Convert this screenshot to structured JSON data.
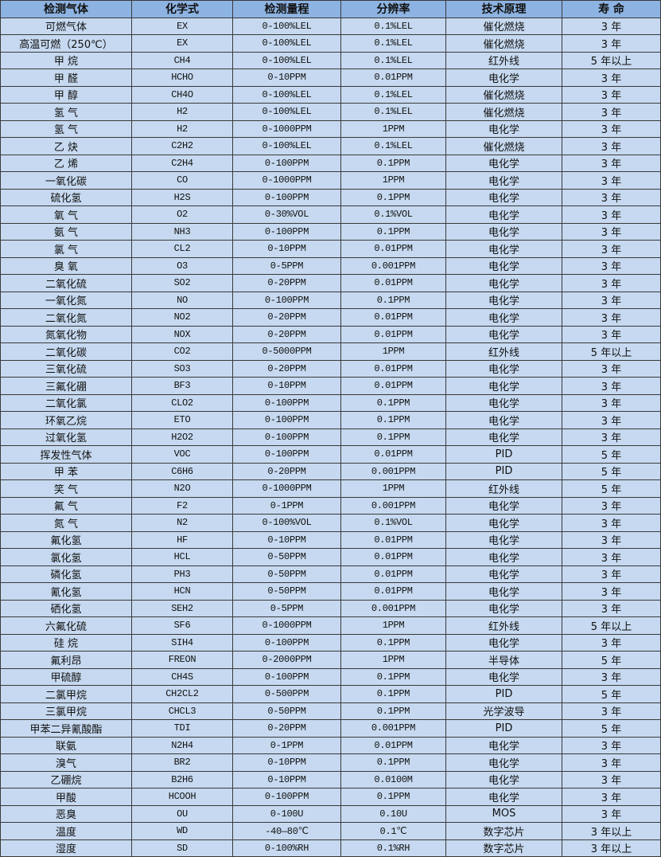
{
  "colors": {
    "header_bg": "#8db3e2",
    "row_bg": "#c6d9f0",
    "border": "#3a3a3a"
  },
  "headers": [
    "检测气体",
    "化学式",
    "检测量程",
    "分辨率",
    "技术原理",
    "寿 命"
  ],
  "rows": [
    [
      "可燃气体",
      "EX",
      "0-100%LEL",
      "0.1%LEL",
      "催化燃烧",
      "3 年"
    ],
    [
      "高温可燃（250℃）",
      "EX",
      "0-100%LEL",
      "0.1%LEL",
      "催化燃烧",
      "3 年"
    ],
    [
      "甲 烷",
      "CH4",
      "0-100%LEL",
      "0.1%LEL",
      "红外线",
      "5 年以上"
    ],
    [
      "甲 醛",
      "HCHO",
      "0-10PPM",
      "0.01PPM",
      "电化学",
      "3 年"
    ],
    [
      "甲 醇",
      "CH4O",
      "0-100%LEL",
      "0.1%LEL",
      "催化燃烧",
      "3 年"
    ],
    [
      "氢 气",
      "H2",
      "0-100%LEL",
      "0.1%LEL",
      "催化燃烧",
      "3 年"
    ],
    [
      "氢 气",
      "H2",
      "0-1000PPM",
      "1PPM",
      "电化学",
      "3 年"
    ],
    [
      "乙 炔",
      "C2H2",
      "0-100%LEL",
      "0.1%LEL",
      "催化燃烧",
      "3 年"
    ],
    [
      "乙 烯",
      "C2H4",
      "0-100PPM",
      "0.1PPM",
      "电化学",
      "3 年"
    ],
    [
      "一氧化碳",
      "CO",
      "0-1000PPM",
      "1PPM",
      "电化学",
      "3 年"
    ],
    [
      "硫化氢",
      "H2S",
      "0-100PPM",
      "0.1PPM",
      "电化学",
      "3 年"
    ],
    [
      "氧 气",
      "O2",
      "0-30%VOL",
      "0.1%VOL",
      "电化学",
      "3 年"
    ],
    [
      "氨 气",
      "NH3",
      "0-100PPM",
      "0.1PPM",
      "电化学",
      "3 年"
    ],
    [
      "氯 气",
      "CL2",
      "0-10PPM",
      "0.01PPM",
      "电化学",
      "3 年"
    ],
    [
      "臭 氧",
      "O3",
      "0-5PPM",
      "0.001PPM",
      "电化学",
      "3 年"
    ],
    [
      "二氧化硫",
      "SO2",
      "0-20PPM",
      "0.01PPM",
      "电化学",
      "3 年"
    ],
    [
      "一氧化氮",
      "NO",
      "0-100PPM",
      "0.1PPM",
      "电化学",
      "3 年"
    ],
    [
      "二氧化氮",
      "NO2",
      "0-20PPM",
      "0.01PPM",
      "电化学",
      "3 年"
    ],
    [
      "氮氧化物",
      "NOX",
      "0-20PPM",
      "0.01PPM",
      "电化学",
      "3 年"
    ],
    [
      "二氧化碳",
      "CO2",
      "0-5000PPM",
      "1PPM",
      "红外线",
      "5 年以上"
    ],
    [
      "三氧化硫",
      "SO3",
      "0-20PPM",
      "0.01PPM",
      "电化学",
      "3 年"
    ],
    [
      "三氟化硼",
      "BF3",
      "0-10PPM",
      "0.01PPM",
      "电化学",
      "3 年"
    ],
    [
      "二氧化氯",
      "CLO2",
      "0-100PPM",
      "0.1PPM",
      "电化学",
      "3 年"
    ],
    [
      "环氧乙烷",
      "ETO",
      "0-100PPM",
      "0.1PPM",
      "电化学",
      "3 年"
    ],
    [
      "过氧化氢",
      "H2O2",
      "0-100PPM",
      "0.1PPM",
      "电化学",
      "3 年"
    ],
    [
      "挥发性气体",
      "VOC",
      "0-100PPM",
      "0.01PPM",
      "PID",
      "5 年"
    ],
    [
      "甲 苯",
      "C6H6",
      "0-20PPM",
      "0.001PPM",
      "PID",
      "5 年"
    ],
    [
      "笑 气",
      "N2O",
      "0-1000PPM",
      "1PPM",
      "红外线",
      "5 年"
    ],
    [
      "氟 气",
      "F2",
      "0-1PPM",
      "0.001PPM",
      "电化学",
      "3 年"
    ],
    [
      "氮 气",
      "N2",
      "0-100%VOL",
      "0.1%VOL",
      "电化学",
      "3 年"
    ],
    [
      "氟化氢",
      "HF",
      "0-10PPM",
      "0.01PPM",
      "电化学",
      "3 年"
    ],
    [
      "氯化氢",
      "HCL",
      "0-50PPM",
      "0.01PPM",
      "电化学",
      "3 年"
    ],
    [
      "磷化氢",
      "PH3",
      "0-50PPM",
      "0.01PPM",
      "电化学",
      "3 年"
    ],
    [
      "氰化氢",
      "HCN",
      "0-50PPM",
      "0.01PPM",
      "电化学",
      "3 年"
    ],
    [
      "硒化氢",
      "SEH2",
      "0-5PPM",
      "0.001PPM",
      "电化学",
      "3 年"
    ],
    [
      "六氟化硫",
      "SF6",
      "0-1000PPM",
      "1PPM",
      "红外线",
      "5 年以上"
    ],
    [
      "硅 烷",
      "SIH4",
      "0-100PPM",
      "0.1PPM",
      "电化学",
      "3 年"
    ],
    [
      "氟利昂",
      "FREON",
      "0-2000PPM",
      "1PPM",
      "半导体",
      "5 年"
    ],
    [
      "甲硫醇",
      "CH4S",
      "0-100PPM",
      "0.1PPM",
      "电化学",
      "3 年"
    ],
    [
      "二氯甲烷",
      "CH2CL2",
      "0-500PPM",
      "0.1PPM",
      "PID",
      "5 年"
    ],
    [
      "三氯甲烷",
      "CHCL3",
      "0-50PPM",
      "0.1PPM",
      "光学波导",
      "3 年"
    ],
    [
      "甲苯二异氰酸酯",
      "TDI",
      "0-20PPM",
      "0.001PPM",
      "PID",
      "5 年"
    ],
    [
      "联氨",
      "N2H4",
      "0-1PPM",
      "0.01PPM",
      "电化学",
      "3 年"
    ],
    [
      "溴气",
      "BR2",
      "0-10PPM",
      "0.1PPM",
      "电化学",
      "3 年"
    ],
    [
      "乙硼烷",
      "B2H6",
      "0-10PPM",
      "0.0100M",
      "电化学",
      "3 年"
    ],
    [
      "甲酸",
      "HCOOH",
      "0-100PPM",
      "0.1PPM",
      "电化学",
      "3 年"
    ],
    [
      "恶臭",
      "OU",
      "0-100U",
      "0.10U",
      "MOS",
      "3 年"
    ],
    [
      "温度",
      "WD",
      "-40—80℃",
      "0.1℃",
      "数字芯片",
      "3 年以上"
    ],
    [
      "湿度",
      "SD",
      "0-100%RH",
      "0.1%RH",
      "数字芯片",
      "3 年以上"
    ]
  ]
}
